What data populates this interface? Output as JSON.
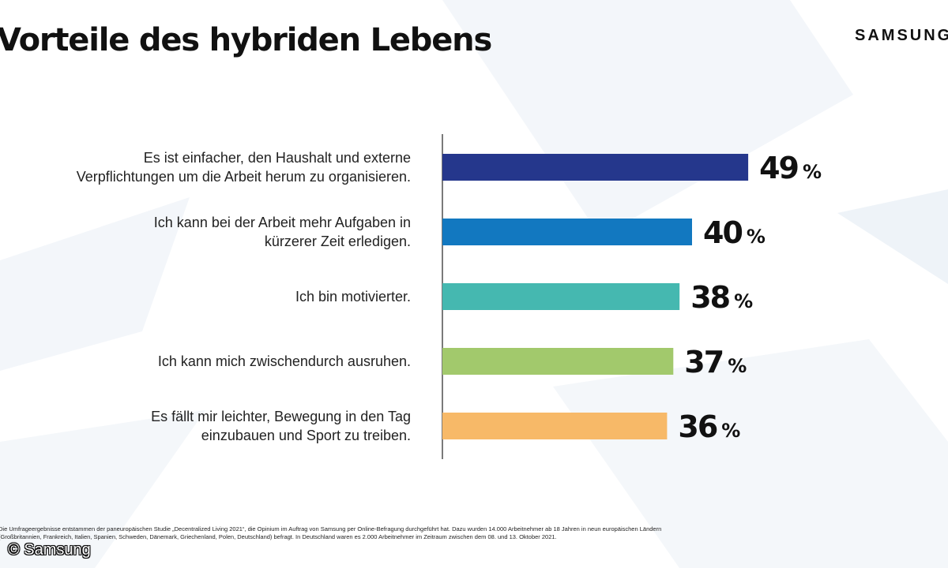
{
  "title": "Vorteile des hybriden Lebens",
  "brand": "SAMSUNG",
  "footnote": "Die Umfrageergebnisse entstammen der paneuropäischen Studie „Decentralized Living 2021“, die Opinium im Auftrag von Samsung per Online-Befragung durchgeführt hat. Dazu wurden 14.000 Arbeitnehmer ab 18 Jahren in neun europäischen Ländern (Großbritannien, Frankreich, Italien, Spanien, Schweden, Dänemark, Griechenland, Polen, Deutschland) befragt. In Deutschland waren es 2.000 Arbeitnehmer im Zeitraum zwischen dem 08. und 13. Oktober 2021.",
  "copyright": "© Samsung",
  "chart_data": {
    "type": "bar",
    "orientation": "horizontal",
    "title": "Vorteile des hybriden Lebens",
    "unit": "%",
    "categories": [
      "Es ist einfacher, den Haushalt und externe\nVerpflichtungen um die Arbeit herum zu organisieren.",
      "Ich kann bei der Arbeit mehr Aufgaben in\nkürzerer Zeit erledigen.",
      "Ich bin motivierter.",
      "Ich kann mich zwischendurch ausruhen.",
      "Es fällt mir leichter, Bewegung in den Tag\neinzubauen und Sport zu treiben."
    ],
    "values": [
      49,
      40,
      38,
      37,
      36
    ],
    "colors": [
      "#25378c",
      "#1278c0",
      "#45b8b0",
      "#a2c96c",
      "#f7b968"
    ],
    "grid": false,
    "legend": "none"
  }
}
